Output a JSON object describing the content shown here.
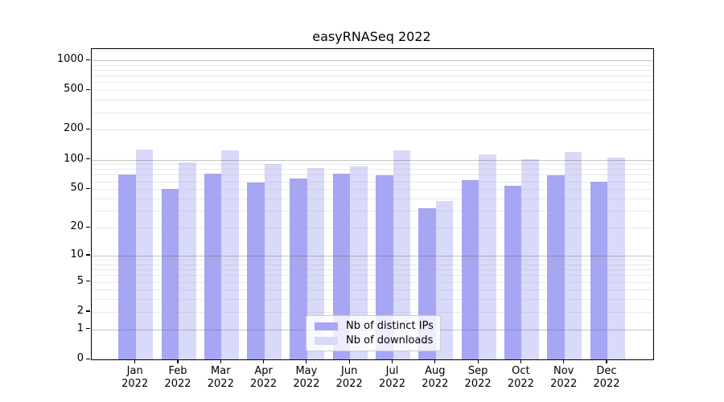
{
  "title": "easyRNASeq 2022",
  "chart_data": {
    "type": "bar",
    "title": "easyRNASeq 2022",
    "categories": [
      "Jan 2022",
      "Feb 2022",
      "Mar 2022",
      "Apr 2022",
      "May 2022",
      "Jun 2022",
      "Jul 2022",
      "Aug 2022",
      "Sep 2022",
      "Oct 2022",
      "Nov 2022",
      "Dec 2022"
    ],
    "series": [
      {
        "name": "Nb of distinct IPs",
        "color": "#a6a6f4",
        "values": [
          70,
          50,
          72,
          59,
          64,
          72,
          69,
          32,
          62,
          54,
          69,
          60
        ]
      },
      {
        "name": "Nb of downloads",
        "color": "#d9d9fa",
        "values": [
          126,
          94,
          123,
          90,
          82,
          86,
          123,
          38,
          112,
          101,
          120,
          105
        ]
      }
    ],
    "xlabel": "",
    "ylabel": "",
    "yscale": "log1p",
    "ylim": [
      0,
      1000
    ],
    "yticks": [
      0,
      1,
      2,
      5,
      10,
      20,
      50,
      100,
      200,
      500,
      1000
    ],
    "major_gridlines": [
      1,
      10,
      100,
      1000
    ],
    "grid": "on",
    "legend_position": "inside-bottom-center"
  }
}
